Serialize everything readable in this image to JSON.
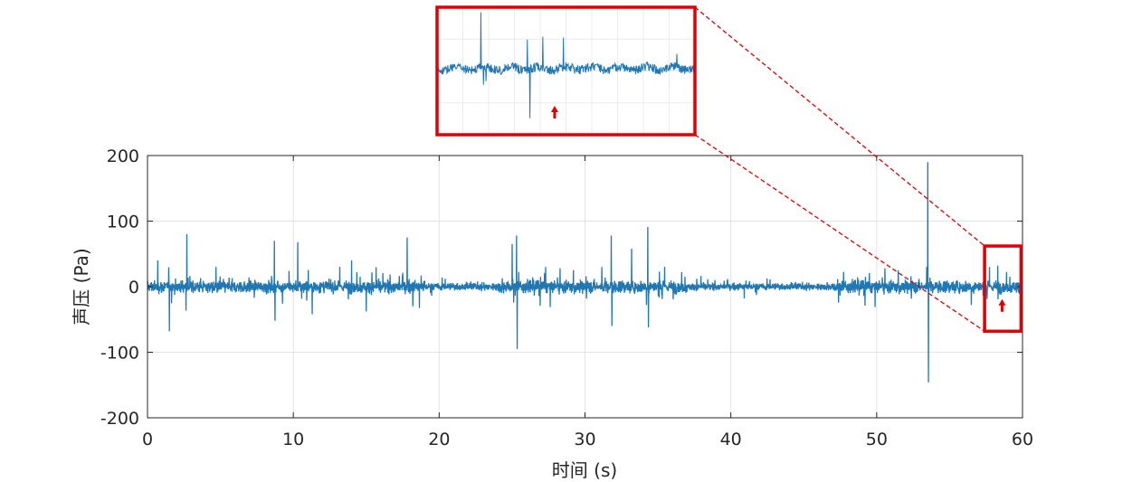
{
  "chart_data": {
    "type": "line",
    "xlabel": "时间 (s)",
    "ylabel": "声压 (Pa)",
    "xlim": [
      0,
      60
    ],
    "ylim": [
      -200,
      200
    ],
    "x_ticks": [
      "0",
      "10",
      "20",
      "30",
      "40",
      "50",
      "60"
    ],
    "y_ticks": [
      "200",
      "100",
      "0",
      "-100",
      "-200"
    ],
    "grid": true,
    "series": [
      {
        "color": "#1f77b4",
        "noise_amplitude": 14,
        "spikes": [
          {
            "x": 0.7,
            "y": 40
          },
          {
            "x": 1.5,
            "y": -68
          },
          {
            "x": 2.7,
            "y": 80
          },
          {
            "x": 4.7,
            "y": 30
          },
          {
            "x": 8.7,
            "y": 70
          },
          {
            "x": 8.75,
            "y": -52
          },
          {
            "x": 10.3,
            "y": 68
          },
          {
            "x": 11.3,
            "y": -42
          },
          {
            "x": 14.0,
            "y": 40
          },
          {
            "x": 15.0,
            "y": -38
          },
          {
            "x": 17.8,
            "y": 75
          },
          {
            "x": 18.2,
            "y": -30
          },
          {
            "x": 25.0,
            "y": 65
          },
          {
            "x": 25.3,
            "y": 78
          },
          {
            "x": 25.35,
            "y": -95
          },
          {
            "x": 27.3,
            "y": 30
          },
          {
            "x": 31.8,
            "y": 78
          },
          {
            "x": 31.85,
            "y": -60
          },
          {
            "x": 33.2,
            "y": 58
          },
          {
            "x": 34.3,
            "y": 91
          },
          {
            "x": 34.35,
            "y": -62
          },
          {
            "x": 53.5,
            "y": 190
          },
          {
            "x": 53.55,
            "y": -146
          },
          {
            "x": 58.3,
            "y": 32
          }
        ]
      }
    ],
    "annotations": {
      "zoom_box": {
        "x_range": [
          57.4,
          59.9
        ],
        "y_range": [
          -68,
          62
        ],
        "color": "#e00000"
      },
      "arrow_marker": {
        "x": 58.6,
        "y": -30,
        "color": "#e00000"
      }
    },
    "inset": {
      "x_range": [
        57.4,
        59.9
      ],
      "grid": true,
      "border_color": "#e00000"
    }
  }
}
